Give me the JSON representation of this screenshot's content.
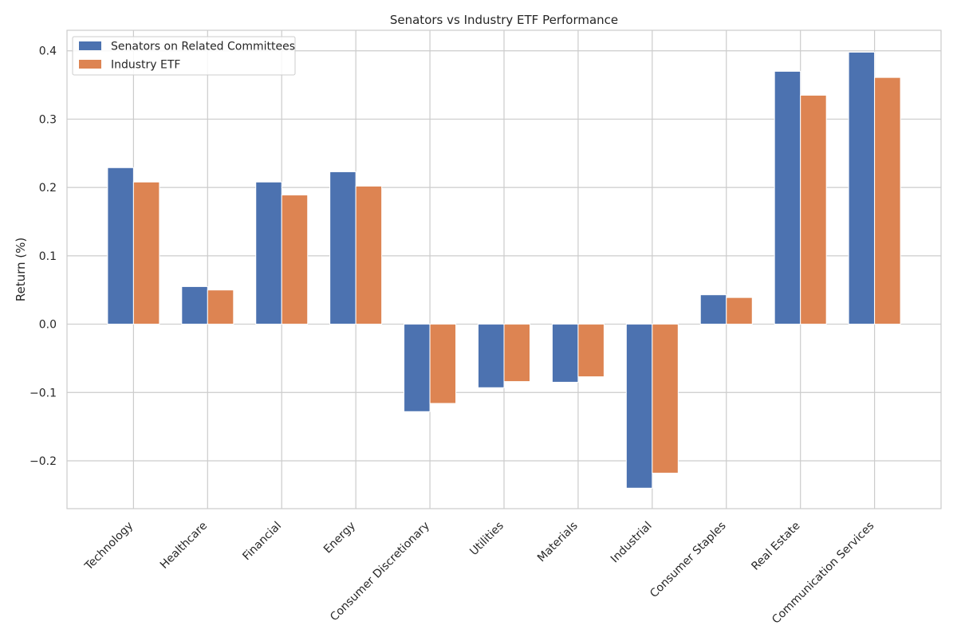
{
  "chart_data": {
    "type": "bar",
    "title": "Senators vs Industry ETF Performance",
    "xlabel": "",
    "ylabel": "Return (%)",
    "categories": [
      "Technology",
      "Healthcare",
      "Financial",
      "Energy",
      "Consumer Discretionary",
      "Utilities",
      "Materials",
      "Industrial",
      "Consumer Staples",
      "Real Estate",
      "Communication Services"
    ],
    "series": [
      {
        "name": "Senators on Related Committees",
        "color": "#4c72b0",
        "values": [
          0.229,
          0.055,
          0.208,
          0.223,
          -0.128,
          -0.093,
          -0.085,
          -0.24,
          0.043,
          0.37,
          0.398
        ]
      },
      {
        "name": "Industry ETF",
        "color": "#dd8452",
        "values": [
          0.208,
          0.05,
          0.189,
          0.202,
          -0.116,
          -0.084,
          -0.077,
          -0.218,
          0.039,
          0.335,
          0.361
        ]
      }
    ],
    "ylim": [
      -0.27,
      0.43
    ],
    "yticks": [
      -0.2,
      -0.1,
      0.0,
      0.1,
      0.2,
      0.3,
      0.4
    ],
    "ytick_labels": [
      "−0.2",
      "−0.1",
      "0.0",
      "0.1",
      "0.2",
      "0.3",
      "0.4"
    ],
    "grid": true,
    "legend_position": "top-left"
  }
}
